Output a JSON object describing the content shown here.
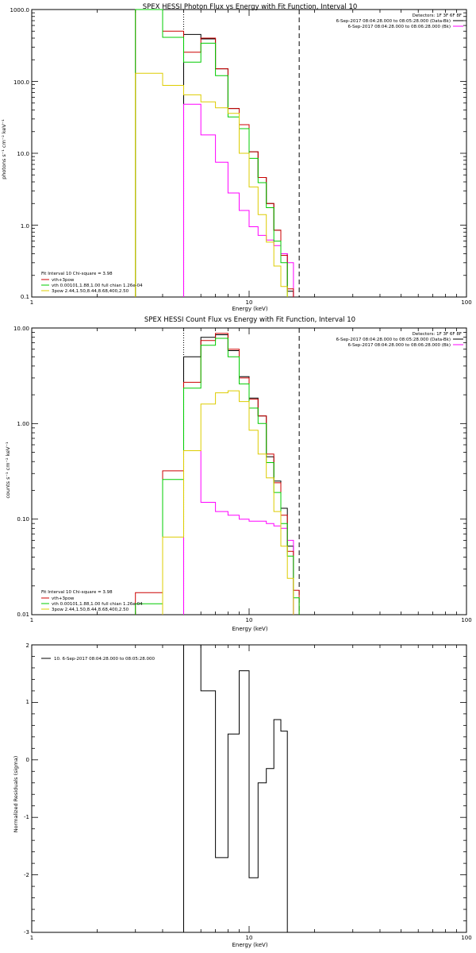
{
  "panels": [
    {
      "id": "photon",
      "title": "SPEX HESSI Photon Flux vs Energy with Fit Function, Interval 10",
      "ylabel": "photons s⁻¹ cm⁻² keV⁻¹",
      "xlabel": "Energy (keV)",
      "xticks": [
        "1",
        "10",
        "100"
      ],
      "yticks": [
        "0.1",
        "1.0",
        "10.0",
        "100.0",
        "1000.0"
      ],
      "legend_tr": [
        "Detectors: 1F 3F 6F 8F",
        "6-Sep-2017 08:04:28.000 to 08:05:28.000 (Data-Bk)",
        "6-Sep-2017 08:04:28.000 to 08:06:28.000 (Bk)"
      ],
      "legend_bl": [
        "Fit Interval 10   Chi-square = 3.98",
        "vth+3pow",
        "vth 0.00101,1.88,1.00  full chian 1.26e-04",
        "3pow 2.44,1.50,8.44,8.68,400,2.50"
      ]
    },
    {
      "id": "count",
      "title": "SPEX HESSI Count Flux vs Energy with Fit Function, Interval 10",
      "ylabel": "counts s⁻¹ cm⁻² keV⁻¹",
      "xlabel": "Energy (keV)",
      "xticks": [
        "1",
        "10",
        "100"
      ],
      "yticks": [
        "0.01",
        "0.10",
        "1.00",
        "10.00"
      ],
      "legend_tr": [
        "Detectors: 1F 3F 6F 8F",
        "6-Sep-2017 08:04:28.000 to 08:05:28.000 (Data-Bk)",
        "6-Sep-2017 08:04:28.000 to 08:06:28.000 (Bk)"
      ],
      "legend_bl": [
        "Fit Interval 10   Chi-square = 3.98",
        "vth+3pow",
        "vth 0.00101,1.88,1.00  full chian 1.26e-04",
        "3pow 2.44,1.50,8.44,8.68,400,2.50"
      ]
    },
    {
      "id": "resid",
      "title": "",
      "ylabel": "Normalized Residuals (sigma)",
      "xlabel": "Energy (keV)",
      "xticks": [
        "1",
        "10",
        "100"
      ],
      "yticks": [
        "-3",
        "-2",
        "-1",
        "0",
        "1",
        "2"
      ],
      "legend_tl": [
        "10.  6-Sep-2017 08:04:28.000 to 08:05:28.000"
      ]
    }
  ],
  "colors": {
    "data": "#000000",
    "background": "#ff00ff",
    "total_fit": "#cc0000",
    "vth": "#00cc00",
    "pow": "#ddcc00"
  },
  "chart_data": [
    {
      "type": "line",
      "title": "SPEX HESSI Photon Flux vs Energy with Fit Function, Interval 10",
      "xlabel": "Energy (keV)",
      "ylabel": "photons s⁻¹ cm⁻² keV⁻¹",
      "xscale": "log",
      "yscale": "log",
      "xlim": [
        1,
        100
      ],
      "ylim": [
        0.1,
        1000
      ],
      "vlines": [
        {
          "x": 5,
          "style": "dotted",
          "color": "#000000"
        },
        {
          "x": 17,
          "style": "dashed",
          "color": "#000000"
        }
      ],
      "bin_edges": [
        3.0,
        4.0,
        5.0,
        6.0,
        7.0,
        8.0,
        9.0,
        10.0,
        11.0,
        12.0,
        13.0,
        14.0,
        15.0,
        16.0,
        17.0,
        18.0
      ],
      "series": [
        {
          "name": "Data-Bk",
          "color": "#000000",
          "values": [
            null,
            null,
            450,
            390,
            150,
            42,
            25,
            10.5,
            4.6,
            2.0,
            0.85,
            0.4,
            0.12,
            null,
            null
          ]
        },
        {
          "name": "Bk",
          "color": "#ff00ff",
          "values": [
            null,
            null,
            48,
            18,
            7.5,
            2.8,
            1.6,
            0.95,
            0.72,
            0.62,
            0.52,
            0.4,
            0.3,
            null,
            null
          ]
        },
        {
          "name": "vth+3pow",
          "color": "#cc0000",
          "values": [
            1000,
            500,
            255,
            400,
            150,
            42,
            25,
            10.5,
            4.6,
            2.0,
            0.85,
            0.38,
            0.13,
            null,
            null
          ]
        },
        {
          "name": "vth",
          "color": "#00cc00",
          "values": [
            1000,
            410,
            185,
            340,
            120,
            32,
            22,
            8.5,
            3.9,
            1.75,
            0.6,
            0.3,
            null,
            null,
            null
          ]
        },
        {
          "name": "3pow",
          "color": "#ddcc00",
          "values": [
            130,
            88,
            65,
            52,
            43,
            36,
            10,
            3.4,
            1.4,
            0.58,
            0.27,
            0.14,
            null,
            null,
            null
          ]
        }
      ]
    },
    {
      "type": "line",
      "title": "SPEX HESSI Count Flux vs Energy with Fit Function, Interval 10",
      "xlabel": "Energy (keV)",
      "ylabel": "counts s⁻¹ cm⁻² keV⁻¹",
      "xscale": "log",
      "yscale": "log",
      "xlim": [
        1,
        100
      ],
      "ylim": [
        0.01,
        10
      ],
      "vlines": [
        {
          "x": 5,
          "style": "dotted",
          "color": "#000000"
        },
        {
          "x": 17,
          "style": "dashed",
          "color": "#000000"
        }
      ],
      "bin_edges": [
        3.0,
        4.0,
        5.0,
        6.0,
        7.0,
        8.0,
        9.0,
        10.0,
        11.0,
        12.0,
        13.0,
        14.0,
        15.0,
        16.0,
        17.0,
        18.0
      ],
      "series": [
        {
          "name": "Data-Bk",
          "color": "#000000",
          "values": [
            null,
            null,
            5.0,
            8.0,
            8.5,
            5.8,
            3.1,
            1.85,
            1.2,
            0.45,
            0.25,
            0.13,
            0.052,
            null,
            null
          ]
        },
        {
          "name": "Bk",
          "color": "#ff00ff",
          "values": [
            null,
            null,
            0.52,
            0.15,
            0.12,
            0.11,
            0.1,
            0.095,
            0.095,
            0.09,
            0.085,
            0.08,
            0.06,
            null,
            null
          ]
        },
        {
          "name": "vth+3pow",
          "color": "#cc0000",
          "values": [
            0.017,
            0.32,
            2.7,
            7.4,
            8.8,
            6.0,
            3.0,
            1.8,
            1.2,
            0.48,
            0.24,
            0.11,
            0.046,
            0.018,
            null
          ]
        },
        {
          "name": "vth",
          "color": "#00cc00",
          "values": [
            0.013,
            0.26,
            2.35,
            6.6,
            7.8,
            5.0,
            2.6,
            1.45,
            1.0,
            0.39,
            0.19,
            0.09,
            0.041,
            0.015,
            null
          ]
        },
        {
          "name": "3pow",
          "color": "#ddcc00",
          "values": [
            null,
            0.065,
            0.52,
            1.6,
            2.1,
            2.2,
            1.7,
            0.85,
            0.48,
            0.27,
            0.12,
            0.052,
            0.024,
            null,
            null
          ]
        }
      ]
    },
    {
      "type": "line",
      "title": "",
      "xlabel": "Energy (keV)",
      "ylabel": "Normalized Residuals (sigma)",
      "xscale": "log",
      "yscale": "linear",
      "xlim": [
        1,
        100
      ],
      "ylim": [
        -3,
        2
      ],
      "bin_edges": [
        5.0,
        6.0,
        7.0,
        8.0,
        9.0,
        10.0,
        11.0,
        12.0,
        13.0,
        14.0,
        15.0,
        16.0,
        17.0
      ],
      "series": [
        {
          "name": "10.  6-Sep-2017 08:04:28.000 to 08:05:28.000",
          "color": "#000000",
          "values": [
            2.0,
            1.2,
            -1.7,
            0.45,
            1.55,
            -2.05,
            -0.4,
            -0.15,
            0.7,
            0.5,
            null,
            null
          ]
        }
      ]
    }
  ]
}
